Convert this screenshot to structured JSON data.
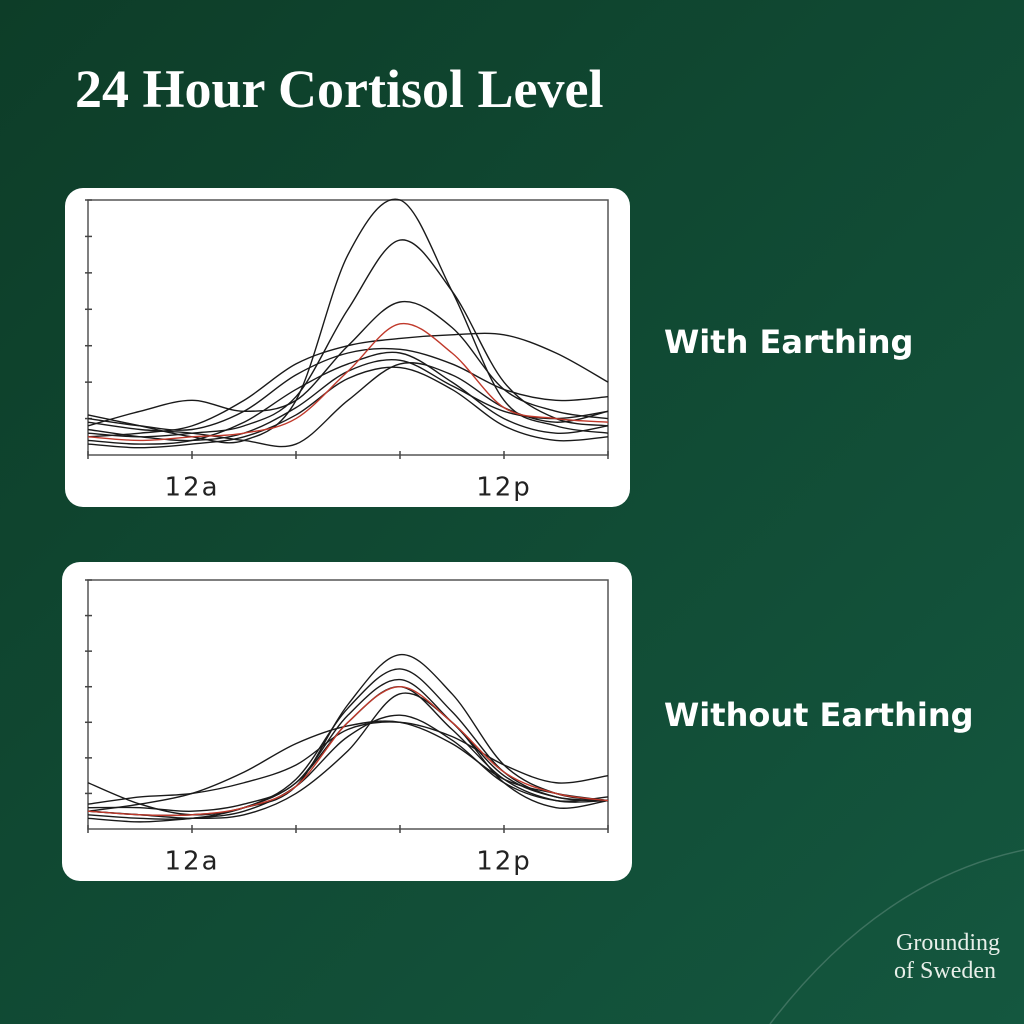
{
  "title": "24 Hour Cortisol Level",
  "brand": [
    "Grounding",
    "of Sweden"
  ],
  "chart_data": [
    {
      "type": "line",
      "title": "With Earthing",
      "x": [
        -4,
        -2,
        0,
        2,
        4,
        6,
        8,
        10,
        12,
        14,
        16
      ],
      "xlim": [
        -4,
        16
      ],
      "ylim": [
        0,
        7
      ],
      "xticks": [
        {
          "value": 0,
          "label": "12a"
        },
        {
          "value": 12,
          "label": "12p"
        }
      ],
      "xminorticks": [
        -4,
        4,
        8,
        16
      ],
      "yminorticks": [
        1,
        2,
        3,
        4,
        5,
        6,
        7
      ],
      "series": [
        {
          "color": "#1a1a1a",
          "values": [
            1.1,
            0.8,
            0.5,
            0.4,
            1.5,
            5.5,
            7.0,
            4.5,
            1.5,
            0.8,
            0.6
          ]
        },
        {
          "color": "#1a1a1a",
          "values": [
            0.6,
            0.5,
            0.6,
            0.8,
            1.6,
            4.0,
            5.9,
            4.5,
            2.0,
            1.0,
            0.8
          ]
        },
        {
          "color": "#1a1a1a",
          "values": [
            0.8,
            1.2,
            1.5,
            1.2,
            1.5,
            3.0,
            4.2,
            3.5,
            1.8,
            1.2,
            1.0
          ]
        },
        {
          "color": "#1a1a1a",
          "values": [
            0.5,
            0.6,
            0.8,
            1.5,
            2.5,
            3.0,
            3.2,
            3.3,
            3.3,
            2.8,
            2.0
          ]
        },
        {
          "color": "#1a1a1a",
          "values": [
            1.0,
            0.8,
            0.7,
            1.2,
            2.2,
            2.8,
            2.9,
            2.5,
            1.8,
            1.5,
            1.6
          ]
        },
        {
          "color": "#1a1a1a",
          "values": [
            0.4,
            0.3,
            0.4,
            0.9,
            1.8,
            2.5,
            2.8,
            2.0,
            1.0,
            0.6,
            0.8
          ]
        },
        {
          "color": "#1a1a1a",
          "values": [
            0.7,
            0.5,
            0.4,
            0.6,
            1.3,
            2.3,
            2.6,
            1.9,
            1.2,
            1.0,
            1.2
          ]
        },
        {
          "color": "#1a1a1a",
          "values": [
            0.3,
            0.2,
            0.3,
            0.5,
            1.1,
            2.1,
            2.4,
            1.8,
            0.8,
            0.4,
            0.5
          ]
        },
        {
          "color": "#1a1a1a",
          "values": [
            0.9,
            0.7,
            0.6,
            0.4,
            0.3,
            1.5,
            2.5,
            2.2,
            1.3,
            0.9,
            1.2
          ]
        },
        {
          "color": "#c0392b",
          "values": [
            0.5,
            0.4,
            0.5,
            0.6,
            1.0,
            2.3,
            3.6,
            2.8,
            1.3,
            1.0,
            0.9
          ]
        }
      ]
    },
    {
      "type": "line",
      "title": "Without Earthing",
      "x": [
        -4,
        -2,
        0,
        2,
        4,
        6,
        8,
        10,
        12,
        14,
        16
      ],
      "xlim": [
        -4,
        16
      ],
      "ylim": [
        0,
        7
      ],
      "xticks": [
        {
          "value": 0,
          "label": "12a"
        },
        {
          "value": 12,
          "label": "12p"
        }
      ],
      "xminorticks": [
        -4,
        4,
        8,
        16
      ],
      "yminorticks": [
        1,
        2,
        3,
        4,
        5,
        6,
        7
      ],
      "series": [
        {
          "color": "#1a1a1a",
          "values": [
            1.3,
            0.7,
            0.4,
            0.6,
            1.2,
            3.5,
            4.9,
            3.8,
            1.8,
            1.0,
            0.8
          ]
        },
        {
          "color": "#1a1a1a",
          "values": [
            0.5,
            0.4,
            0.4,
            0.6,
            1.4,
            3.4,
            4.5,
            3.3,
            1.6,
            0.9,
            0.8
          ]
        },
        {
          "color": "#1a1a1a",
          "values": [
            0.6,
            0.6,
            0.5,
            0.7,
            1.3,
            3.2,
            4.2,
            3.0,
            1.5,
            0.9,
            0.8
          ]
        },
        {
          "color": "#1a1a1a",
          "values": [
            0.4,
            0.3,
            0.3,
            0.6,
            1.3,
            3.0,
            4.0,
            2.8,
            1.4,
            0.8,
            0.8
          ]
        },
        {
          "color": "#1a1a1a",
          "values": [
            0.7,
            0.9,
            1.0,
            1.3,
            1.8,
            2.8,
            3.0,
            2.6,
            1.8,
            1.3,
            1.5
          ]
        },
        {
          "color": "#1a1a1a",
          "values": [
            0.5,
            0.7,
            1.0,
            1.6,
            2.4,
            2.9,
            3.0,
            2.4,
            1.4,
            1.0,
            0.8
          ]
        },
        {
          "color": "#1a1a1a",
          "values": [
            0.3,
            0.2,
            0.3,
            0.5,
            1.2,
            2.6,
            3.2,
            2.5,
            1.3,
            0.8,
            0.9
          ]
        },
        {
          "color": "#1a1a1a",
          "values": [
            0.5,
            0.4,
            0.3,
            0.4,
            1.0,
            2.2,
            3.8,
            3.0,
            1.3,
            0.6,
            0.8
          ]
        },
        {
          "color": "#c0392b",
          "values": [
            0.5,
            0.4,
            0.4,
            0.6,
            1.2,
            3.0,
            4.0,
            3.0,
            1.6,
            1.0,
            0.8
          ]
        }
      ]
    }
  ]
}
